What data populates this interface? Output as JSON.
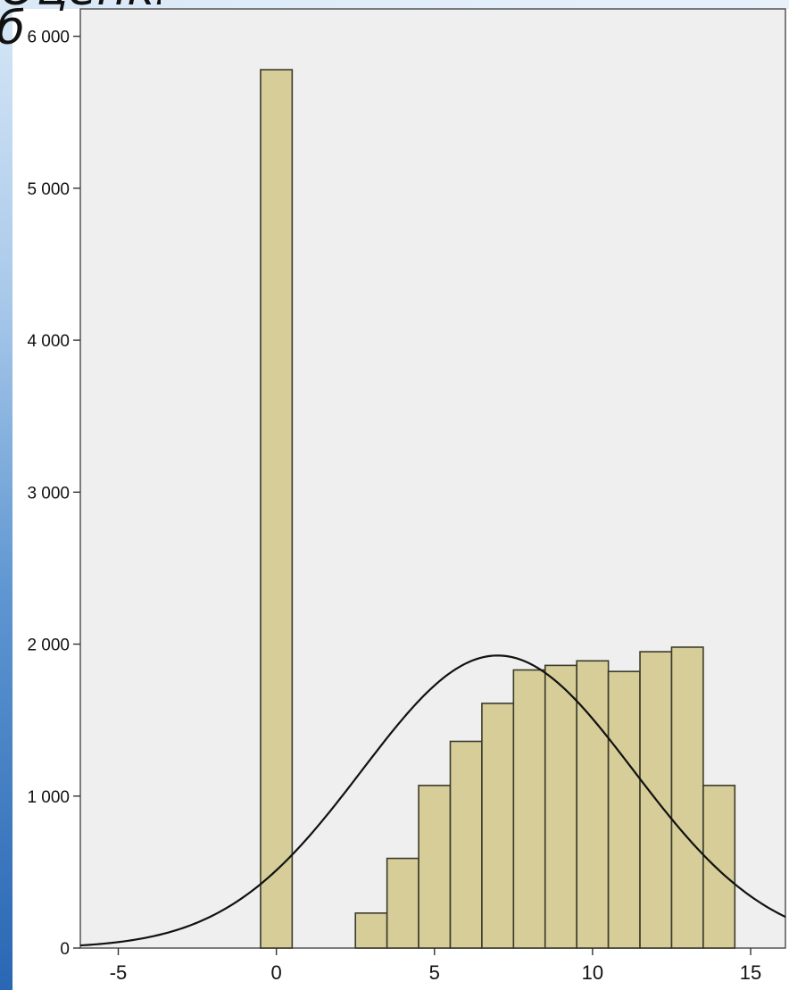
{
  "slide_fragment": {
    "top_text": "Оценки",
    "glyph": "б"
  },
  "chart_data": {
    "type": "bar",
    "title": "",
    "xlabel": "",
    "ylabel": "",
    "xlim": [
      -6.2,
      16.1
    ],
    "ylim": [
      0,
      6180
    ],
    "x_ticks": [
      -5,
      0,
      5,
      10,
      15
    ],
    "y_ticks": [
      0,
      1000,
      2000,
      3000,
      4000,
      5000,
      6000
    ],
    "x_tick_labels": [
      "-5",
      "0",
      "5",
      "10",
      "15"
    ],
    "y_tick_labels": [
      "0",
      "1 000",
      "2 000",
      "3 000",
      "4 000",
      "5 000",
      "6 000"
    ],
    "bin_width": 1,
    "bins": [
      {
        "x": 0,
        "value": 5780
      },
      {
        "x": 3,
        "value": 230
      },
      {
        "x": 4,
        "value": 590
      },
      {
        "x": 5,
        "value": 1070
      },
      {
        "x": 6,
        "value": 1360
      },
      {
        "x": 7,
        "value": 1610
      },
      {
        "x": 8,
        "value": 1830
      },
      {
        "x": 9,
        "value": 1860
      },
      {
        "x": 10,
        "value": 1890
      },
      {
        "x": 11,
        "value": 1820
      },
      {
        "x": 12,
        "value": 1950
      },
      {
        "x": 13,
        "value": 1980
      },
      {
        "x": 14,
        "value": 1070
      }
    ],
    "normal_curve": {
      "mean": 7.0,
      "sd": 4.3,
      "peak": 1925
    },
    "grid": false,
    "legend": "none",
    "colors": {
      "plot_bg": "#efefef",
      "bar_fill": "#d6cd98",
      "bar_stroke": "#3b3b2c",
      "curve": "#111111",
      "axis": "#333333"
    }
  }
}
